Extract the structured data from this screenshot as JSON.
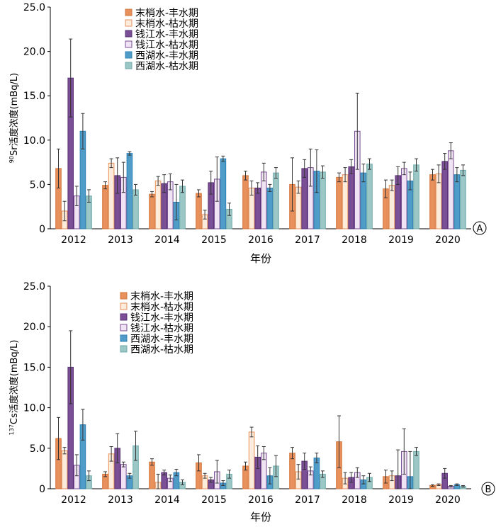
{
  "chart_data": [
    {
      "type": "bar",
      "panel_label": "A",
      "ylabel_superscript": "90",
      "ylabel": "Sr活度浓度(mBq/L)",
      "xlabel": "年份",
      "ylim": [
        0,
        25
      ],
      "yticks": [
        "0",
        "5.0",
        "10.0",
        "15.0",
        "20.0",
        "25.0"
      ],
      "categories": [
        "2012",
        "2013",
        "2014",
        "2015",
        "2016",
        "2017",
        "2018",
        "2019",
        "2020"
      ],
      "legend_position": "top-left",
      "series": [
        {
          "name": "末梢水-丰水期",
          "values": [
            6.8,
            4.9,
            3.9,
            4.0,
            6.0,
            5.0,
            5.8,
            4.5,
            6.1
          ],
          "errors": [
            2.2,
            0.4,
            0.3,
            0.4,
            0.5,
            3.0,
            0.5,
            1.0,
            0.6
          ]
        },
        {
          "name": "末梢水-枯水期",
          "values": [
            2.0,
            7.4,
            5.4,
            1.6,
            4.6,
            4.7,
            6.1,
            4.9,
            6.2
          ],
          "errors": [
            1.1,
            0.5,
            0.5,
            0.5,
            0.8,
            0.7,
            0.8,
            0.6,
            1.0
          ]
        },
        {
          "name": "钱江水-丰水期",
          "values": [
            17.0,
            6.0,
            5.1,
            5.2,
            4.6,
            6.8,
            7.0,
            6.0,
            7.6
          ],
          "errors": [
            4.4,
            2.0,
            1.0,
            1.3,
            0.6,
            1.0,
            0.8,
            1.0,
            0.9
          ]
        },
        {
          "name": "钱江水-枯水期",
          "values": [
            3.7,
            5.8,
            5.3,
            5.6,
            6.4,
            6.9,
            11.0,
            6.8,
            8.8
          ],
          "errors": [
            1.1,
            1.7,
            0.9,
            2.5,
            1.0,
            2.1,
            4.3,
            0.7,
            0.9
          ]
        },
        {
          "name": "西湖水-丰水期",
          "values": [
            11.0,
            8.5,
            3.0,
            7.9,
            4.6,
            6.5,
            6.3,
            5.4,
            6.1
          ],
          "errors": [
            2.0,
            0.2,
            2.0,
            0.3,
            0.4,
            2.4,
            1.0,
            1.0,
            0.8
          ]
        },
        {
          "name": "西湖水-枯水期",
          "values": [
            3.7,
            4.4,
            4.8,
            2.2,
            6.3,
            6.4,
            7.3,
            7.2,
            6.6
          ],
          "errors": [
            0.7,
            0.6,
            0.7,
            0.7,
            0.6,
            0.7,
            0.6,
            0.7,
            0.6
          ]
        }
      ]
    },
    {
      "type": "bar",
      "panel_label": "B",
      "ylabel_superscript": "137",
      "ylabel": "Cs活度浓度(mBq/L)",
      "xlabel": "年份",
      "ylim": [
        0,
        25
      ],
      "yticks": [
        "0",
        "5.0",
        "10.0",
        "15.0",
        "20.0",
        "25.0"
      ],
      "categories": [
        "2012",
        "2013",
        "2014",
        "2015",
        "2016",
        "2017",
        "2018",
        "2019",
        "2020"
      ],
      "legend_position": "top-left",
      "series": [
        {
          "name": "末梢水-丰水期",
          "values": [
            6.2,
            1.8,
            3.3,
            3.2,
            2.8,
            4.4,
            5.8,
            1.5,
            0.4
          ],
          "errors": [
            2.6,
            0.3,
            0.4,
            1.0,
            0.5,
            0.7,
            3.2,
            0.8,
            0.1
          ]
        },
        {
          "name": "末梢水-枯水期",
          "values": [
            4.7,
            4.3,
            0.8,
            1.6,
            7.0,
            2.1,
            1.3,
            1.6,
            0.5
          ],
          "errors": [
            0.4,
            0.9,
            1.0,
            0.3,
            0.6,
            0.9,
            0.7,
            0.6,
            0.1
          ]
        },
        {
          "name": "钱江水-丰水期",
          "values": [
            15.0,
            5.0,
            2.0,
            1.1,
            3.9,
            3.4,
            1.4,
            1.6,
            1.9
          ],
          "errors": [
            4.5,
            1.8,
            0.3,
            0.3,
            1.4,
            1.0,
            0.6,
            3.2,
            0.6
          ]
        },
        {
          "name": "钱江水-枯水期",
          "values": [
            2.9,
            3.0,
            1.3,
            2.1,
            4.4,
            2.2,
            2.0,
            4.6,
            0.3
          ],
          "errors": [
            1.3,
            0.3,
            0.4,
            1.4,
            0.8,
            0.5,
            0.6,
            2.8,
            0.1
          ]
        },
        {
          "name": "西湖水-丰水期",
          "values": [
            7.9,
            1.6,
            2.0,
            0.7,
            1.6,
            3.8,
            1.1,
            1.5,
            0.5
          ],
          "errors": [
            1.9,
            0.3,
            0.4,
            0.3,
            1.0,
            0.6,
            0.5,
            3.1,
            0.1
          ]
        },
        {
          "name": "西湖水-枯水期",
          "values": [
            1.6,
            5.3,
            0.8,
            1.8,
            2.8,
            1.8,
            1.4,
            4.6,
            0.3
          ],
          "errors": [
            0.6,
            1.8,
            0.3,
            0.5,
            1.3,
            0.4,
            0.5,
            0.5,
            0.1
          ]
        }
      ]
    }
  ],
  "style": {
    "series_fill": [
      "#E8915C",
      "#FDEBDC",
      "#7A4F95",
      "#EFE3F4",
      "#4F9CC9",
      "#9CC7C7"
    ],
    "series_stroke": [
      "#D2743B",
      "#E8915C",
      "#5A3276",
      "#7A4F95",
      "#2F82B5",
      "#6FAAAA"
    ],
    "error_color": "#333333"
  }
}
